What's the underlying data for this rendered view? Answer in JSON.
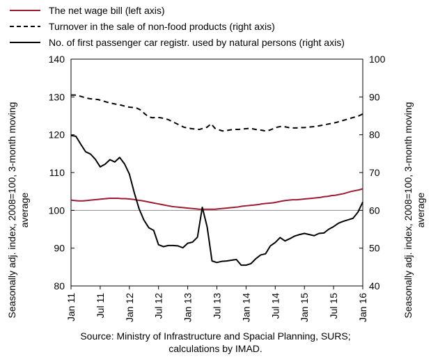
{
  "chart_data": {
    "type": "line",
    "x_start": "Jan 11",
    "x_end": "Jan 16",
    "x_tick_labels": [
      "Jan 11",
      "Jul 11",
      "Jan 12",
      "Jul 12",
      "Jan 13",
      "Jul 13",
      "Jan 14",
      "Jul 14",
      "Jan 15",
      "Jul 15",
      "Jan 16"
    ],
    "left_axis": {
      "label": "Seasonally adj. index, 2008=100, 3-month moving average",
      "label_lines": [
        "Seasonally adj. index, 2008=100, 3-month moving",
        "average"
      ],
      "ylim": [
        80,
        140
      ],
      "ticks": [
        "140",
        "130",
        "120",
        "110",
        "100",
        "90",
        "80"
      ]
    },
    "right_axis": {
      "label": "Seasonally adj. index, 2008=100, 3-month moving average",
      "label_lines": [
        "Seasonally adj. index, 2008=100, 3-month moving",
        "average"
      ],
      "ylim": [
        40,
        100
      ],
      "ticks": [
        "100",
        "90",
        "80",
        "70",
        "60",
        "50",
        "40"
      ]
    },
    "reference_line_left_axis": 100,
    "series": [
      {
        "name": "The net wage bill (left axis)",
        "axis": "left",
        "color": "#9b1b30",
        "style": "solid",
        "values": [
          102.7,
          102.6,
          102.5,
          102.5,
          102.6,
          102.7,
          102.8,
          102.9,
          103.0,
          103.1,
          103.2,
          103.2,
          103.2,
          103.1,
          103.1,
          103.0,
          102.9,
          102.7,
          102.6,
          102.4,
          102.2,
          102.0,
          101.8,
          101.6,
          101.4,
          101.2,
          101.0,
          100.9,
          100.8,
          100.7,
          100.6,
          100.5,
          100.4,
          100.3,
          100.3,
          100.3,
          100.3,
          100.3,
          100.4,
          100.5,
          100.6,
          100.7,
          100.8,
          100.9,
          101.1,
          101.2,
          101.3,
          101.4,
          101.5,
          101.7,
          101.8,
          101.9,
          102.0,
          102.2,
          102.4,
          102.6,
          102.7,
          102.8,
          102.8,
          102.9,
          103.0,
          103.1,
          103.2,
          103.3,
          103.4,
          103.6,
          103.7,
          103.9,
          104.0,
          104.2,
          104.4,
          104.7,
          105.0,
          105.2,
          105.4,
          105.7
        ]
      },
      {
        "name": "Turnover in the sale of non-food products (right axis)",
        "axis": "right",
        "color": "#000000",
        "style": "dashed",
        "values": [
          90.5,
          90.5,
          90.3,
          90.0,
          89.7,
          89.5,
          89.4,
          89.3,
          89.0,
          88.7,
          88.4,
          88.2,
          88.0,
          87.8,
          87.5,
          87.3,
          87.2,
          87.0,
          86.5,
          85.5,
          84.7,
          84.5,
          84.6,
          84.5,
          84.3,
          84.0,
          83.5,
          83.0,
          82.5,
          82.0,
          81.8,
          81.6,
          81.5,
          81.4,
          81.7,
          82.0,
          82.9,
          81.7,
          81.3,
          81.0,
          81.1,
          81.3,
          81.4,
          81.4,
          81.5,
          81.6,
          81.7,
          81.5,
          81.3,
          81.2,
          81.0,
          81.2,
          81.6,
          82.0,
          82.2,
          82.1,
          81.9,
          81.8,
          81.8,
          81.9,
          81.9,
          82.0,
          82.1,
          82.2,
          82.4,
          82.6,
          82.8,
          83.0,
          83.2,
          83.5,
          83.8,
          84.1,
          84.4,
          84.7,
          85.0,
          85.5
        ]
      },
      {
        "name": "No. of first passenger car registr. used by natural persons (right axis)",
        "axis": "right",
        "color": "#000000",
        "style": "solid",
        "values": [
          79.8,
          79.6,
          77.5,
          75.5,
          74.9,
          73.5,
          71.5,
          72.2,
          73.4,
          72.8,
          74.0,
          72.3,
          69.6,
          64.7,
          60.4,
          57.4,
          55.4,
          54.7,
          50.9,
          50.4,
          50.7,
          50.7,
          50.6,
          50.1,
          51.3,
          51.6,
          52.9,
          60.8,
          55.6,
          46.6,
          46.2,
          46.5,
          46.6,
          46.8,
          47.0,
          45.5,
          45.5,
          45.9,
          47.2,
          48.2,
          48.5,
          50.6,
          51.5,
          52.8,
          51.9,
          52.5,
          53.2,
          53.6,
          53.9,
          53.6,
          53.3,
          53.9,
          54.0,
          55.0,
          55.7,
          56.6,
          57.1,
          57.5,
          57.9,
          59.5,
          62.2
        ]
      }
    ]
  },
  "source_lines": [
    "Source: Ministry of Infrastructure and Spacial Planning, SURS;",
    "calculations by IMAD."
  ]
}
